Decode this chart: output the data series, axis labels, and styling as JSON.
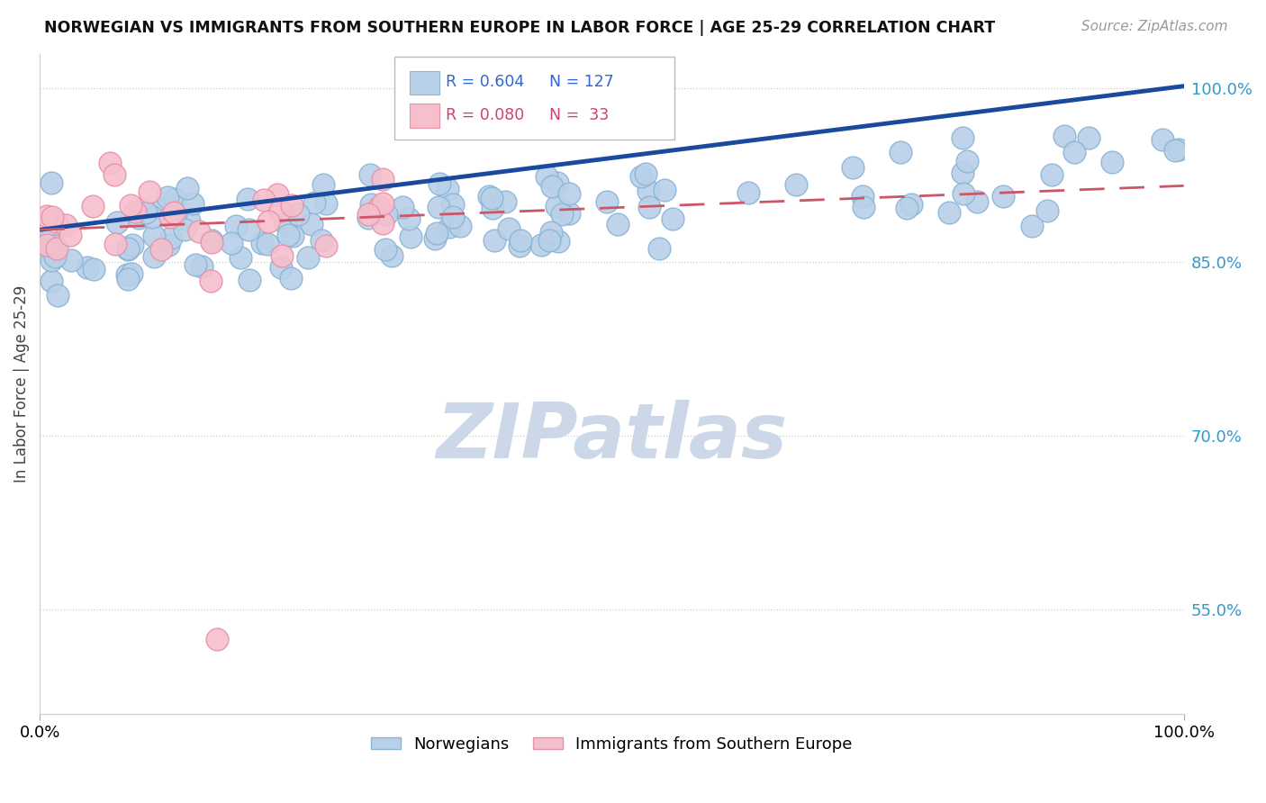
{
  "title": "NORWEGIAN VS IMMIGRANTS FROM SOUTHERN EUROPE IN LABOR FORCE | AGE 25-29 CORRELATION CHART",
  "source": "Source: ZipAtlas.com",
  "ylabel": "In Labor Force | Age 25-29",
  "xlim": [
    0.0,
    1.0
  ],
  "ylim": [
    0.46,
    1.03
  ],
  "yticks": [
    0.55,
    0.7,
    0.85,
    1.0
  ],
  "ytick_labels": [
    "55.0%",
    "70.0%",
    "85.0%",
    "100.0%"
  ],
  "xtick_labels": [
    "0.0%",
    "100.0%"
  ],
  "r_norwegian": 0.604,
  "n_norwegian": 127,
  "r_immigrant": 0.08,
  "n_immigrant": 33,
  "norwegian_color": "#b8d0e8",
  "norwegian_edge": "#8ab4d4",
  "immigrant_color": "#f5bfcc",
  "immigrant_edge": "#e890a8",
  "line_norwegian_color": "#1a4a9e",
  "line_immigrant_color": "#cc5566",
  "watermark_color": "#ccd8e8",
  "background_color": "#ffffff",
  "nor_line_start_y": 0.878,
  "nor_line_end_y": 1.002,
  "imm_line_start_y": 0.878,
  "imm_line_end_y": 0.916
}
